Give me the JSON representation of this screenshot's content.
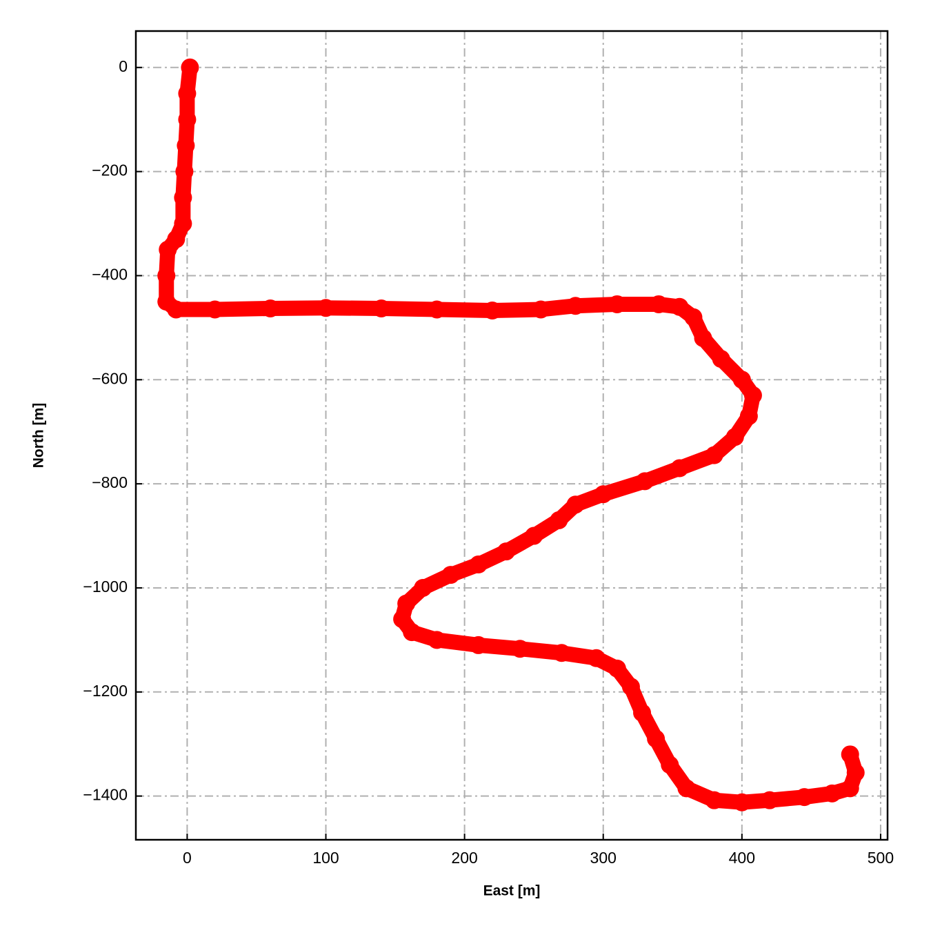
{
  "chart_data": {
    "type": "line",
    "xlabel": "East [m]",
    "ylabel": "North [m]",
    "color": "#ff0000",
    "grid": true,
    "xlim": [
      -37,
      505
    ],
    "ylim": [
      -1484,
      70
    ],
    "xticks": [
      0,
      100,
      200,
      300,
      400,
      500
    ],
    "yticks": [
      {
        "value": -1400,
        "label": "−1400"
      },
      {
        "value": -1200,
        "label": "−1200"
      },
      {
        "value": -1000,
        "label": "−1000"
      },
      {
        "value": -800,
        "label": "−800"
      },
      {
        "value": -600,
        "label": "−600"
      },
      {
        "value": -400,
        "label": "−400"
      },
      {
        "value": -200,
        "label": "−200"
      },
      0
    ],
    "x": [
      2,
      0,
      0,
      -1,
      -2,
      -3,
      -3,
      -8,
      -14,
      -15,
      -15,
      -8,
      20,
      60,
      100,
      140,
      180,
      220,
      255,
      280,
      310,
      340,
      355,
      365,
      372,
      385,
      400,
      408,
      405,
      395,
      380,
      355,
      330,
      300,
      280,
      268,
      250,
      230,
      210,
      190,
      170,
      158,
      155,
      162,
      180,
      210,
      240,
      270,
      295,
      310,
      320,
      328,
      338,
      348,
      360,
      380,
      400,
      420,
      445,
      465,
      478,
      482,
      478
    ],
    "values": [
      0,
      -50,
      -100,
      -150,
      -200,
      -250,
      -300,
      -330,
      -350,
      -400,
      -450,
      -465,
      -465,
      -463,
      -462,
      -463,
      -465,
      -467,
      -465,
      -458,
      -455,
      -455,
      -460,
      -480,
      -520,
      -560,
      -600,
      -630,
      -670,
      -710,
      -745,
      -770,
      -795,
      -820,
      -840,
      -870,
      -900,
      -930,
      -955,
      -975,
      -1000,
      -1030,
      -1060,
      -1085,
      -1100,
      -1110,
      -1117,
      -1125,
      -1135,
      -1155,
      -1190,
      -1240,
      -1290,
      -1340,
      -1385,
      -1408,
      -1412,
      -1408,
      -1402,
      -1395,
      -1385,
      -1355,
      -1320
    ]
  }
}
